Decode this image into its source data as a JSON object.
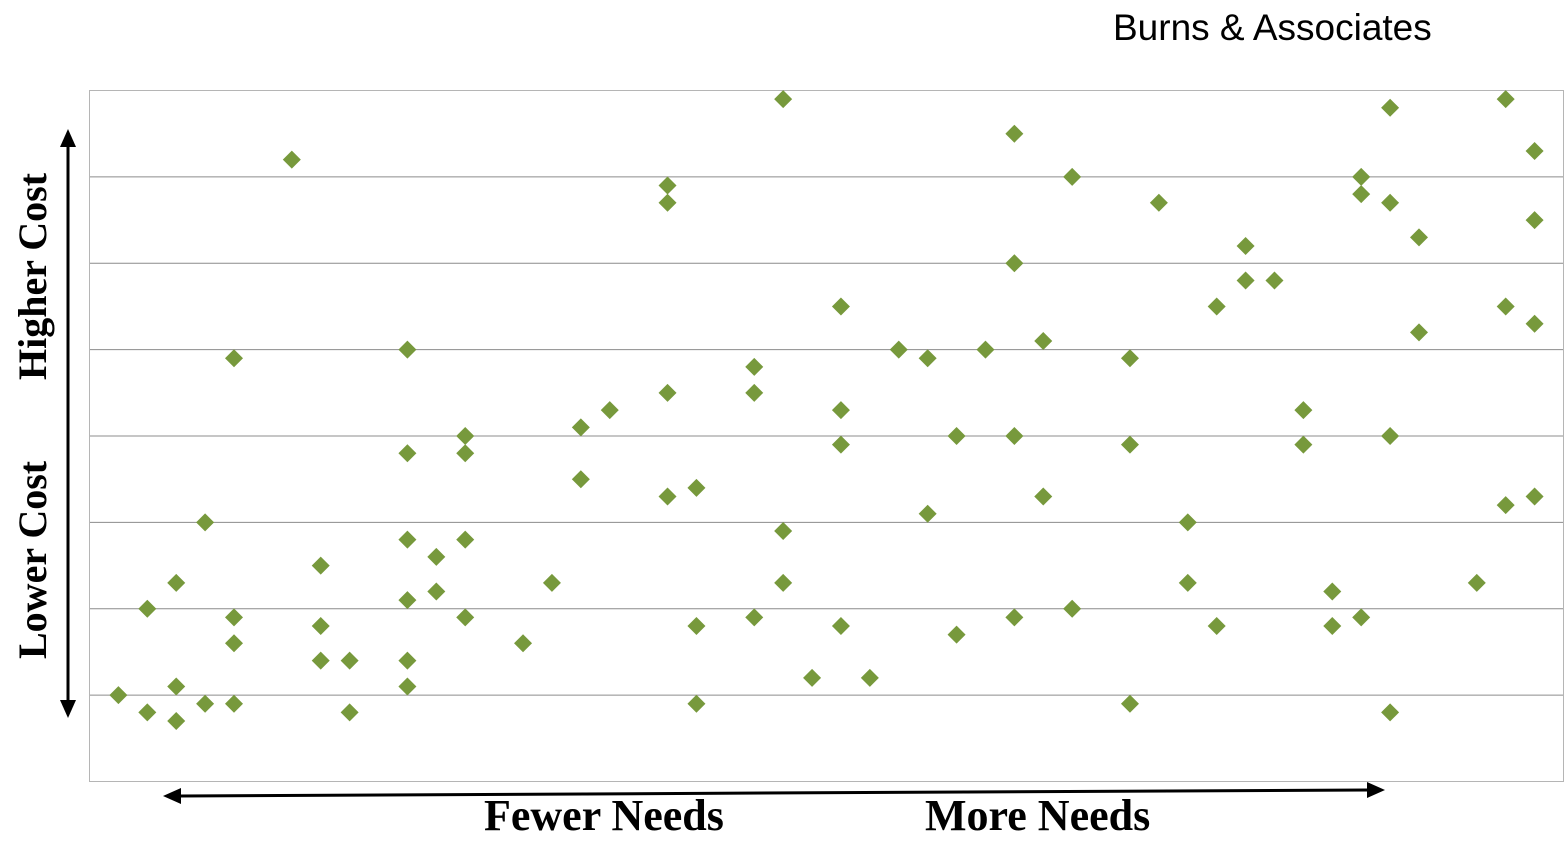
{
  "brand": "Burns & Associates",
  "axes": {
    "x_low": "Fewer Needs",
    "x_high": "More Needs",
    "y_low": "Lower Cost",
    "y_high": "Higher Cost"
  },
  "colors": {
    "marker": "#77993c",
    "grid": "#8c8c8c",
    "frame": "#b5b5b5",
    "arrow": "#000000"
  },
  "chart_data": {
    "type": "scatter",
    "title": "",
    "xlabel": "",
    "ylabel": "",
    "xlim": [
      0,
      51
    ],
    "ylim": [
      0,
      8
    ],
    "grid": "horizontal",
    "legend": "none",
    "marker": "diamond",
    "series": [
      {
        "points": [
          [
            1,
            1.0
          ],
          [
            2,
            2.0
          ],
          [
            2,
            0.8
          ],
          [
            3,
            2.3
          ],
          [
            3,
            1.1
          ],
          [
            3,
            0.7
          ],
          [
            4,
            3.0
          ],
          [
            4,
            0.9
          ],
          [
            5,
            4.9
          ],
          [
            5,
            1.9
          ],
          [
            5,
            1.6
          ],
          [
            5,
            0.9
          ],
          [
            7,
            7.2
          ],
          [
            8,
            2.5
          ],
          [
            8,
            1.8
          ],
          [
            8,
            1.4
          ],
          [
            9,
            1.4
          ],
          [
            9,
            0.8
          ],
          [
            11,
            5.0
          ],
          [
            11,
            3.8
          ],
          [
            11,
            2.8
          ],
          [
            11,
            2.1
          ],
          [
            11,
            1.4
          ],
          [
            11,
            1.1
          ],
          [
            12,
            2.6
          ],
          [
            12,
            2.2
          ],
          [
            13,
            4.0
          ],
          [
            13,
            3.8
          ],
          [
            13,
            2.8
          ],
          [
            13,
            1.9
          ],
          [
            15,
            1.6
          ],
          [
            16,
            2.3
          ],
          [
            17,
            4.1
          ],
          [
            17,
            3.5
          ],
          [
            18,
            4.3
          ],
          [
            20,
            6.9
          ],
          [
            20,
            6.7
          ],
          [
            20,
            4.5
          ],
          [
            20,
            3.3
          ],
          [
            21,
            3.4
          ],
          [
            21,
            1.8
          ],
          [
            21,
            0.9
          ],
          [
            23,
            4.8
          ],
          [
            23,
            4.5
          ],
          [
            23,
            1.9
          ],
          [
            24,
            7.9
          ],
          [
            24,
            2.9
          ],
          [
            24,
            2.3
          ],
          [
            25,
            1.2
          ],
          [
            26,
            5.5
          ],
          [
            26,
            4.3
          ],
          [
            26,
            3.9
          ],
          [
            26,
            1.8
          ],
          [
            27,
            1.2
          ],
          [
            28,
            5.0
          ],
          [
            29,
            4.9
          ],
          [
            29,
            3.1
          ],
          [
            30,
            4.0
          ],
          [
            30,
            1.7
          ],
          [
            31,
            5.0
          ],
          [
            32,
            7.5
          ],
          [
            32,
            6.0
          ],
          [
            32,
            4.0
          ],
          [
            32,
            1.9
          ],
          [
            33,
            5.1
          ],
          [
            33,
            3.3
          ],
          [
            34,
            7.0
          ],
          [
            34,
            2.0
          ],
          [
            36,
            4.9
          ],
          [
            36,
            3.9
          ],
          [
            36,
            0.9
          ],
          [
            37,
            6.7
          ],
          [
            38,
            3.0
          ],
          [
            38,
            2.3
          ],
          [
            39,
            5.5
          ],
          [
            39,
            1.8
          ],
          [
            40,
            6.2
          ],
          [
            40,
            5.8
          ],
          [
            41,
            5.8
          ],
          [
            42,
            4.3
          ],
          [
            42,
            3.9
          ],
          [
            43,
            2.2
          ],
          [
            43,
            1.8
          ],
          [
            44,
            7.0
          ],
          [
            44,
            6.8
          ],
          [
            44,
            1.9
          ],
          [
            45,
            7.8
          ],
          [
            45,
            6.7
          ],
          [
            45,
            4.0
          ],
          [
            45,
            0.8
          ],
          [
            46,
            6.3
          ],
          [
            46,
            5.2
          ],
          [
            48,
            2.3
          ],
          [
            49,
            7.9
          ],
          [
            49,
            5.5
          ],
          [
            49,
            3.2
          ],
          [
            50,
            7.3
          ],
          [
            50,
            6.5
          ],
          [
            50,
            5.3
          ],
          [
            50,
            3.3
          ]
        ]
      }
    ]
  }
}
